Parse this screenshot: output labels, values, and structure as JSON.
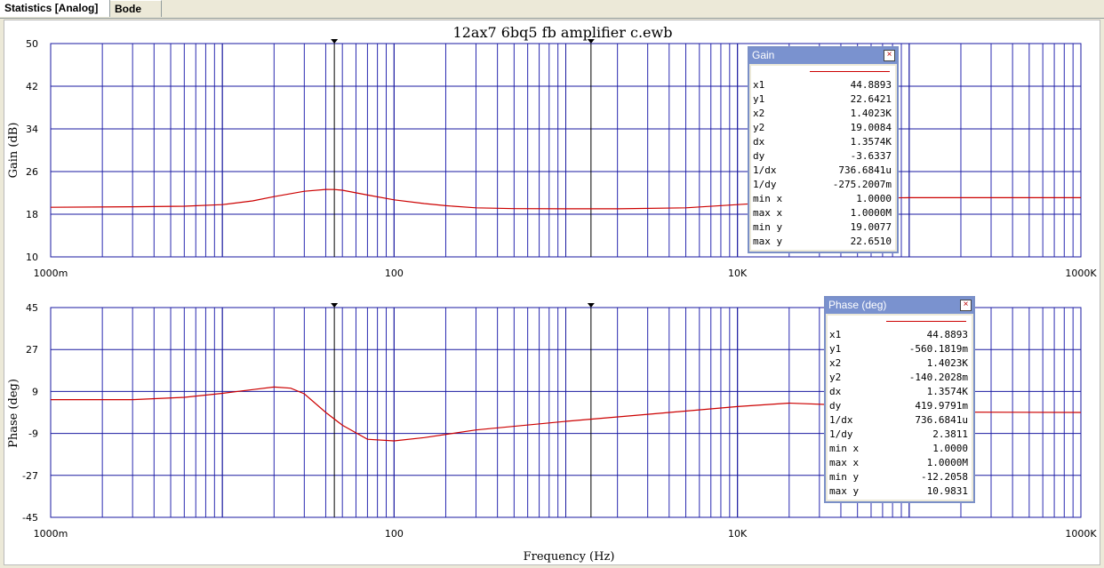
{
  "tabs": [
    {
      "label": "Statistics [Analog]"
    },
    {
      "label": "Bode"
    }
  ],
  "chart_data": [
    {
      "type": "line",
      "title": "12ax7 6bq5 fb amplifier c.ewb",
      "xlabel": "",
      "ylabel": "Gain (dB)",
      "x_scale": "log",
      "xlim": [
        1,
        1000000
      ],
      "ylim": [
        10,
        50
      ],
      "yticks": [
        "50",
        "42",
        "34",
        "26",
        "18",
        "10"
      ],
      "xticks": [
        "1000m",
        "100",
        "10K",
        "1000K"
      ],
      "grid": true,
      "series": [
        {
          "color": "#cc0000",
          "x": [
            1,
            3,
            6,
            10,
            15,
            20,
            30,
            40,
            45,
            50,
            70,
            100,
            150,
            200,
            300,
            500,
            1000,
            2000,
            5000,
            10000,
            20000,
            50000,
            100000,
            1000000
          ],
          "y": [
            19.3,
            19.4,
            19.5,
            19.8,
            20.5,
            21.3,
            22.3,
            22.65,
            22.64,
            22.5,
            21.6,
            20.7,
            20.0,
            19.6,
            19.2,
            19.05,
            19.01,
            19.01,
            19.2,
            19.8,
            20.4,
            21.0,
            21.1,
            21.1
          ]
        }
      ],
      "cursors": {
        "x1": 44.8893,
        "x2": 1402.3
      },
      "cursor_panel": {
        "title": "Gain",
        "rows": [
          {
            "k": "x1",
            "v": "44.8893"
          },
          {
            "k": "y1",
            "v": "22.6421"
          },
          {
            "k": "x2",
            "v": "1.4023K"
          },
          {
            "k": "y2",
            "v": "19.0084"
          },
          {
            "k": "dx",
            "v": "1.3574K"
          },
          {
            "k": "dy",
            "v": "-3.6337"
          },
          {
            "k": "1/dx",
            "v": "736.6841u"
          },
          {
            "k": "1/dy",
            "v": "-275.2007m"
          },
          {
            "k": "min x",
            "v": "1.0000"
          },
          {
            "k": "max x",
            "v": "1.0000M"
          },
          {
            "k": "min y",
            "v": "19.0077"
          },
          {
            "k": "max y",
            "v": "22.6510"
          }
        ]
      }
    },
    {
      "type": "line",
      "title": "",
      "xlabel": "Frequency (Hz)",
      "ylabel": "Phase (deg)",
      "x_scale": "log",
      "xlim": [
        1,
        1000000
      ],
      "ylim": [
        -45,
        45
      ],
      "yticks": [
        "45",
        "27",
        "9",
        "-9",
        "-27",
        "-45"
      ],
      "xticks": [
        "1000m",
        "100",
        "10K",
        "1000K"
      ],
      "grid": true,
      "series": [
        {
          "color": "#cc0000",
          "x": [
            1,
            3,
            6,
            10,
            15,
            20,
            25,
            30,
            40,
            50,
            70,
            100,
            150,
            300,
            1000,
            3000,
            10000,
            20000,
            40000,
            60000,
            100000,
            1000000
          ],
          "y": [
            5.5,
            5.5,
            6.5,
            8.2,
            9.8,
            10.9,
            10.4,
            8.0,
            0.0,
            -5.5,
            -11.5,
            -12.2,
            -10.8,
            -7.5,
            -3.8,
            -0.8,
            2.5,
            4.0,
            3.2,
            1.2,
            0.2,
            0.0
          ]
        }
      ],
      "cursors": {
        "x1": 44.8893,
        "x2": 1402.3
      },
      "cursor_panel": {
        "title": "Phase (deg)",
        "rows": [
          {
            "k": "x1",
            "v": "44.8893"
          },
          {
            "k": "y1",
            "v": "-560.1819m"
          },
          {
            "k": "x2",
            "v": "1.4023K"
          },
          {
            "k": "y2",
            "v": "-140.2028m"
          },
          {
            "k": "dx",
            "v": "1.3574K"
          },
          {
            "k": "dy",
            "v": "419.9791m"
          },
          {
            "k": "1/dx",
            "v": "736.6841u"
          },
          {
            "k": "1/dy",
            "v": "2.3811"
          },
          {
            "k": "min x",
            "v": "1.0000"
          },
          {
            "k": "max x",
            "v": "1.0000M"
          },
          {
            "k": "min y",
            "v": "-12.2058"
          },
          {
            "k": "max y",
            "v": "10.9831"
          }
        ]
      }
    }
  ]
}
